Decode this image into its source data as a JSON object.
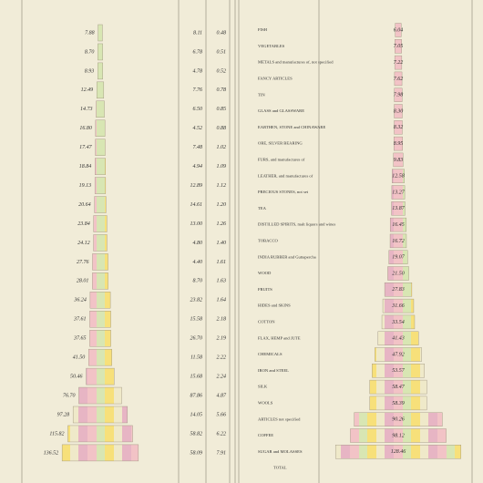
{
  "chart_data": [
    {
      "type": "bar",
      "values": [
        7.88,
        8.7,
        8.93,
        12.49,
        14.73,
        16.8,
        17.47,
        18.84,
        19.13,
        20.64,
        23.84,
        24.12,
        27.76,
        28.01,
        36.24,
        37.61,
        37.65,
        41.5,
        50.46,
        76.7,
        97.28,
        115.82,
        136.52
      ],
      "value_labels": [
        "7.88",
        "8.70",
        "8.93",
        "12.49",
        "14.73",
        "16.80",
        "17.47",
        "18.84",
        "19.13",
        "20.64",
        "23.84",
        "24.12",
        "27.76",
        "28.01",
        "36.24",
        "37.61",
        "37.65",
        "41.50",
        "50.46",
        "76.70",
        "97.28",
        "115.82",
        "136.52"
      ],
      "column_a": [
        "8.11",
        "6.78",
        "4.78",
        "7.76",
        "6.50",
        "4.52",
        "7.48",
        "4.94",
        "12.89",
        "14.61",
        "13.00",
        "4.80",
        "4.40",
        "8.70",
        "23.82",
        "15.58",
        "26.70",
        "11.58",
        "15.68",
        "87.86",
        "14.05",
        "58.82",
        "58.09"
      ],
      "column_b": [
        "0.48",
        "0.51",
        "0.52",
        "0.78",
        "0.85",
        "0.88",
        "1.02",
        "1.09",
        "1.12",
        "1.20",
        "1.26",
        "1.40",
        "1.61",
        "1.63",
        "1.64",
        "2.18",
        "2.19",
        "2.22",
        "2.24",
        "4.87",
        "5.66",
        "6.22",
        "7.91"
      ],
      "xlim": [
        0,
        150
      ]
    },
    {
      "type": "bar",
      "categories": [
        "FISH",
        "VEGETABLES",
        "METALS and manufactures of, not specified",
        "FANCY ARTICLES",
        "TIN",
        "GLASS and GLASSWARE",
        "EARTHEN, STONE and CHINAWARE",
        "ORE, SILVER BEARING",
        "FURS, and manufactures of",
        "LEATHER, and manufactures of",
        "PRECIOUS STONES, not set",
        "TEA",
        "DISTILLED SPIRITS, malt liquors and wines",
        "TOBACCO",
        "INDIA RUBBER and Guttapercha",
        "WOOD",
        "FRUITS",
        "HIDES and SKINS",
        "COTTON",
        "FLAX, HEMP and JUTE",
        "CHEMICALS",
        "IRON and STEEL",
        "SILK",
        "WOOLS",
        "ARTICLES not specified",
        "COFFEE",
        "SUGAR and MOLASSES"
      ],
      "values": [
        6.04,
        7.05,
        7.22,
        7.62,
        7.98,
        8.3,
        8.32,
        8.95,
        9.83,
        12.58,
        13.27,
        13.87,
        16.45,
        16.72,
        19.07,
        21.5,
        27.83,
        31.66,
        33.54,
        41.43,
        47.92,
        53.57,
        58.47,
        58.39,
        90.26,
        98.12,
        128.46
      ],
      "value_labels": [
        "6.04",
        "7.05",
        "7.22",
        "7.62",
        "7.98",
        "8.30",
        "8.32",
        "8.95",
        "9.83",
        "12.58",
        "13.27",
        "13.87",
        "16.45",
        "16.72",
        "19.07",
        "21.50",
        "27.83",
        "31.66",
        "33.54",
        "41.43",
        "47.92",
        "53.57",
        "58.47",
        "58.39",
        "90.26",
        "98.12",
        "128.46"
      ],
      "total_label": "TOTAL",
      "xlim": [
        0,
        140
      ]
    }
  ]
}
